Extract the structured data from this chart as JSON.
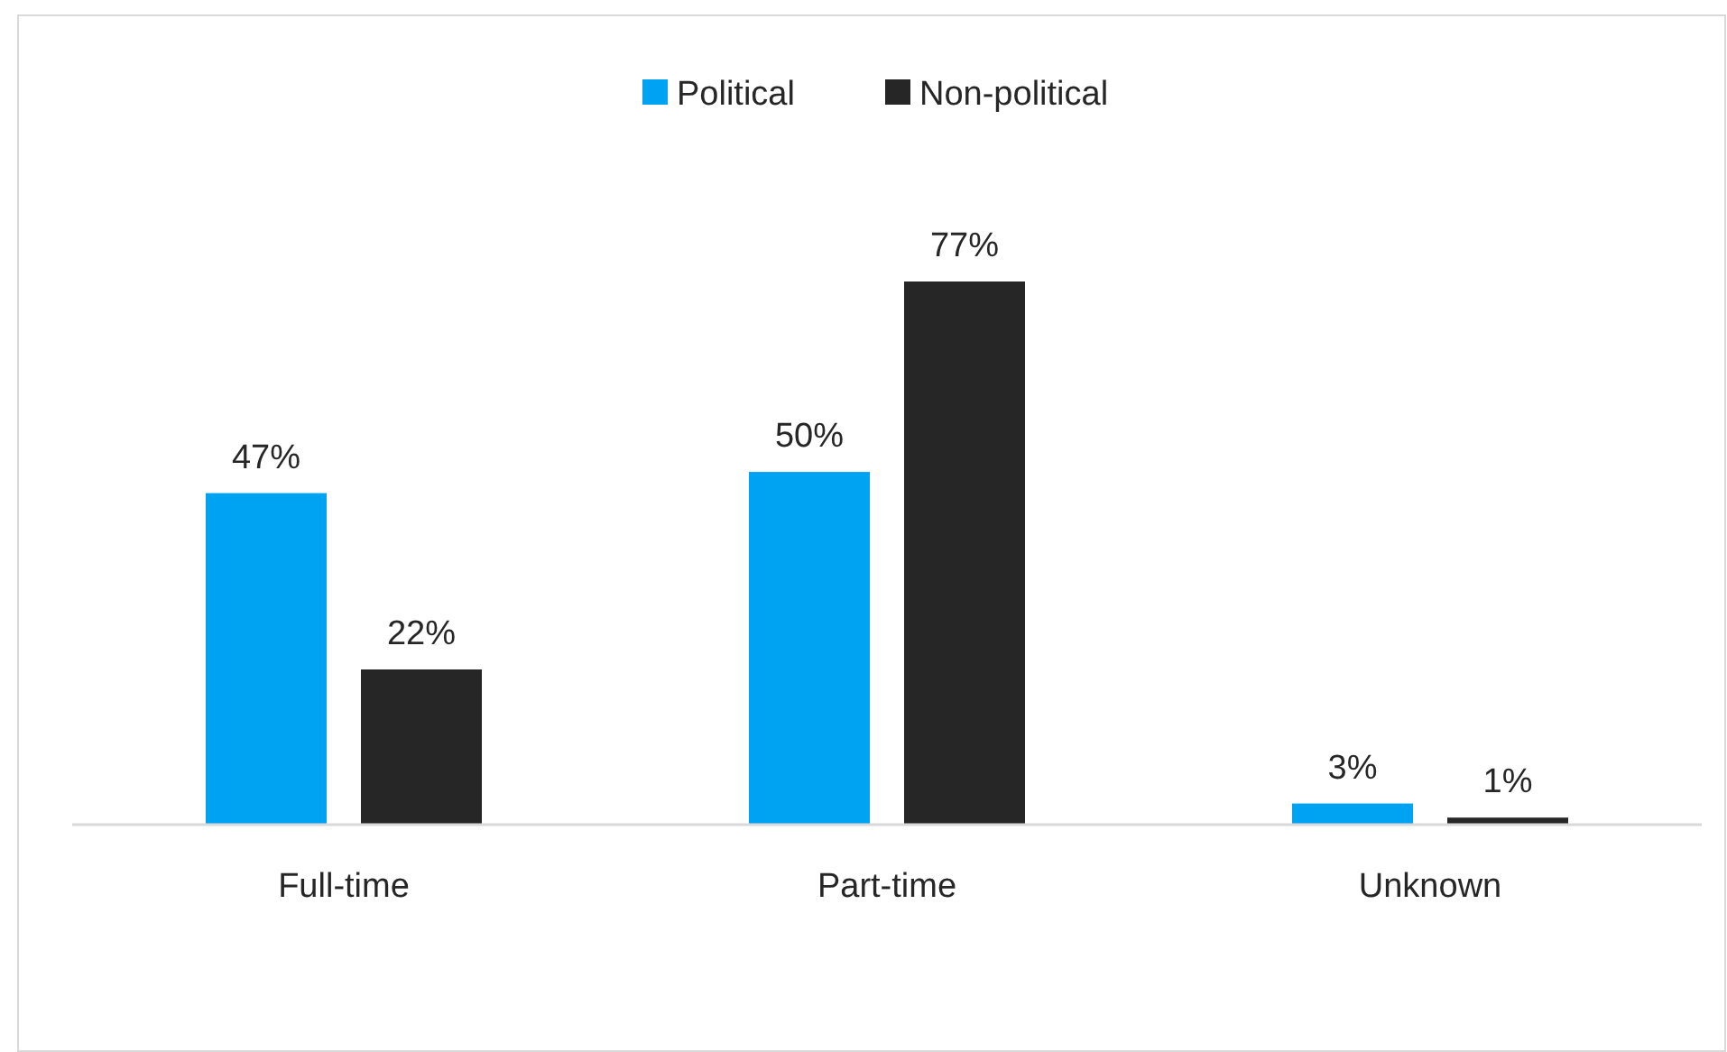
{
  "chart_data": {
    "type": "bar",
    "categories": [
      "Full-time",
      "Part-time",
      "Unknown"
    ],
    "series": [
      {
        "name": "Political",
        "color": "#00a2f2",
        "values": [
          47,
          50,
          3
        ],
        "value_labels": [
          "47%",
          "50%",
          "3%"
        ]
      },
      {
        "name": "Non-political",
        "color": "#262626",
        "values": [
          22,
          77,
          1
        ],
        "value_labels": [
          "22%",
          "77%",
          "1%"
        ]
      }
    ],
    "legend": "top",
    "grid": false
  }
}
